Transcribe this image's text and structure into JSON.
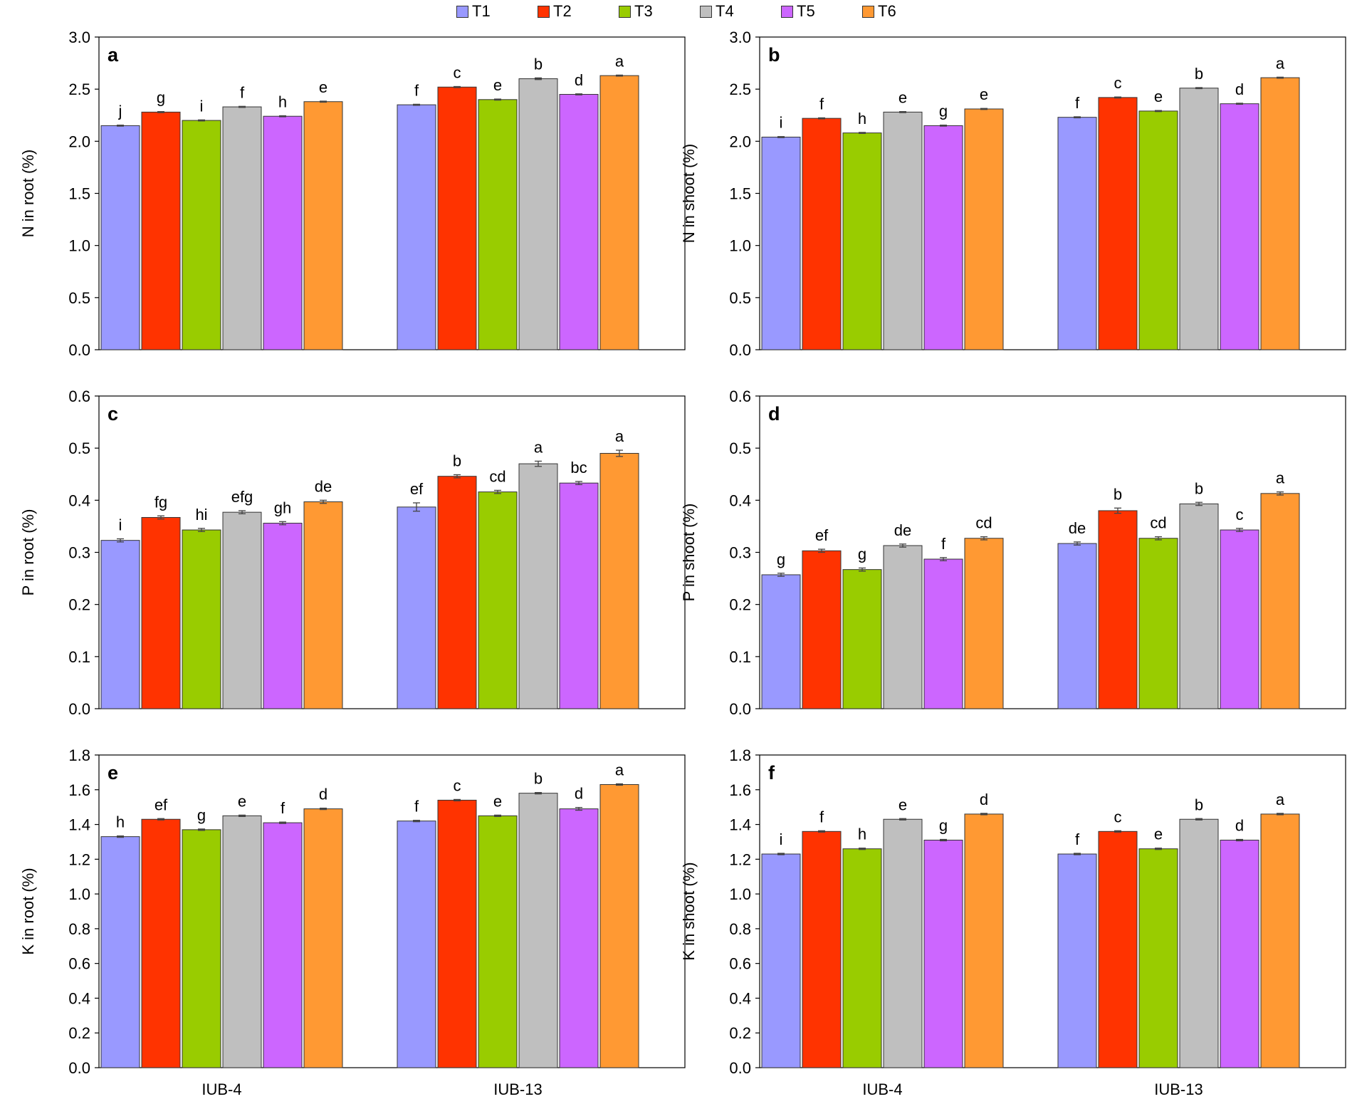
{
  "legend": [
    {
      "label": "T1",
      "color": "#9999ff"
    },
    {
      "label": "T2",
      "color": "#ff3300"
    },
    {
      "label": "T3",
      "color": "#99cc00"
    },
    {
      "label": "T4",
      "color": "#bfbfbf"
    },
    {
      "label": "T5",
      "color": "#cc66ff"
    },
    {
      "label": "T6",
      "color": "#ff9933"
    }
  ],
  "chart_data": [
    {
      "panel": "a",
      "type": "bar",
      "ylabel": "N in root (%)",
      "ylim": [
        0,
        3.0
      ],
      "yticks": [
        "0.0",
        "0.5",
        "1.0",
        "1.5",
        "2.0",
        "2.5",
        "3.0"
      ],
      "categories": [
        "IUB-4",
        "IUB-13"
      ],
      "show_xlabels": false,
      "series": [
        {
          "name": "T1",
          "values": [
            2.15,
            2.35
          ],
          "errors": [
            0.005,
            0.005
          ],
          "letters": [
            "j",
            "f"
          ]
        },
        {
          "name": "T2",
          "values": [
            2.28,
            2.52
          ],
          "errors": [
            0.005,
            0.005
          ],
          "letters": [
            "g",
            "c"
          ]
        },
        {
          "name": "T3",
          "values": [
            2.2,
            2.4
          ],
          "errors": [
            0.005,
            0.005
          ],
          "letters": [
            "i",
            "e"
          ]
        },
        {
          "name": "T4",
          "values": [
            2.33,
            2.6
          ],
          "errors": [
            0.005,
            0.008
          ],
          "letters": [
            "f",
            "b"
          ]
        },
        {
          "name": "T5",
          "values": [
            2.24,
            2.45
          ],
          "errors": [
            0.005,
            0.005
          ],
          "letters": [
            "h",
            "d"
          ]
        },
        {
          "name": "T6",
          "values": [
            2.38,
            2.63
          ],
          "errors": [
            0.005,
            0.005
          ],
          "letters": [
            "e",
            "a"
          ]
        }
      ]
    },
    {
      "panel": "b",
      "type": "bar",
      "ylabel": "N in shoot (%)",
      "ylim": [
        0,
        3.0
      ],
      "yticks": [
        "0.0",
        "0.5",
        "1.0",
        "1.5",
        "2.0",
        "2.5",
        "3.0"
      ],
      "categories": [
        "IUB-4",
        "IUB-13"
      ],
      "show_xlabels": false,
      "series": [
        {
          "name": "T1",
          "values": [
            2.04,
            2.23
          ],
          "errors": [
            0.005,
            0.005
          ],
          "letters": [
            "i",
            "f"
          ]
        },
        {
          "name": "T2",
          "values": [
            2.22,
            2.42
          ],
          "errors": [
            0.005,
            0.005
          ],
          "letters": [
            "f",
            "c"
          ]
        },
        {
          "name": "T3",
          "values": [
            2.08,
            2.29
          ],
          "errors": [
            0.005,
            0.005
          ],
          "letters": [
            "h",
            "e"
          ]
        },
        {
          "name": "T4",
          "values": [
            2.28,
            2.51
          ],
          "errors": [
            0.005,
            0.005
          ],
          "letters": [
            "e",
            "b"
          ]
        },
        {
          "name": "T5",
          "values": [
            2.15,
            2.36
          ],
          "errors": [
            0.005,
            0.005
          ],
          "letters": [
            "g",
            "d"
          ]
        },
        {
          "name": "T6",
          "values": [
            2.31,
            2.61
          ],
          "errors": [
            0.005,
            0.005
          ],
          "letters": [
            "e",
            "a"
          ]
        }
      ]
    },
    {
      "panel": "c",
      "type": "bar",
      "ylabel": "P in root (%)",
      "ylim": [
        0,
        0.6
      ],
      "yticks": [
        "0.0",
        "0.1",
        "0.2",
        "0.3",
        "0.4",
        "0.5",
        "0.6"
      ],
      "categories": [
        "IUB-4",
        "IUB-13"
      ],
      "show_xlabels": false,
      "series": [
        {
          "name": "T1",
          "values": [
            0.323,
            0.387
          ],
          "errors": [
            0.003,
            0.008
          ],
          "letters": [
            "i",
            "ef"
          ]
        },
        {
          "name": "T2",
          "values": [
            0.367,
            0.446
          ],
          "errors": [
            0.003,
            0.003
          ],
          "letters": [
            "fg",
            "b"
          ]
        },
        {
          "name": "T3",
          "values": [
            0.343,
            0.416
          ],
          "errors": [
            0.003,
            0.003
          ],
          "letters": [
            "hi",
            "cd"
          ]
        },
        {
          "name": "T4",
          "values": [
            0.377,
            0.47
          ],
          "errors": [
            0.003,
            0.005
          ],
          "letters": [
            "efg",
            "a"
          ]
        },
        {
          "name": "T5",
          "values": [
            0.356,
            0.433
          ],
          "errors": [
            0.003,
            0.003
          ],
          "letters": [
            "gh",
            "bc"
          ]
        },
        {
          "name": "T6",
          "values": [
            0.397,
            0.49
          ],
          "errors": [
            0.003,
            0.006
          ],
          "letters": [
            "de",
            "a"
          ]
        }
      ]
    },
    {
      "panel": "d",
      "type": "bar",
      "ylabel": "P in shoot (%)",
      "ylim": [
        0,
        0.6
      ],
      "yticks": [
        "0.0",
        "0.1",
        "0.2",
        "0.3",
        "0.4",
        "0.5",
        "0.6"
      ],
      "categories": [
        "IUB-4",
        "IUB-13"
      ],
      "show_xlabels": false,
      "series": [
        {
          "name": "T1",
          "values": [
            0.257,
            0.317
          ],
          "errors": [
            0.003,
            0.003
          ],
          "letters": [
            "g",
            "de"
          ]
        },
        {
          "name": "T2",
          "values": [
            0.303,
            0.38
          ],
          "errors": [
            0.003,
            0.005
          ],
          "letters": [
            "ef",
            "b"
          ]
        },
        {
          "name": "T3",
          "values": [
            0.267,
            0.327
          ],
          "errors": [
            0.003,
            0.003
          ],
          "letters": [
            "g",
            "cd"
          ]
        },
        {
          "name": "T4",
          "values": [
            0.313,
            0.393
          ],
          "errors": [
            0.003,
            0.003
          ],
          "letters": [
            "de",
            "b"
          ]
        },
        {
          "name": "T5",
          "values": [
            0.287,
            0.343
          ],
          "errors": [
            0.003,
            0.003
          ],
          "letters": [
            "f",
            "c"
          ]
        },
        {
          "name": "T6",
          "values": [
            0.327,
            0.413
          ],
          "errors": [
            0.003,
            0.003
          ],
          "letters": [
            "cd",
            "a"
          ]
        }
      ]
    },
    {
      "panel": "e",
      "type": "bar",
      "ylabel": "K in root (%)",
      "ylim": [
        0,
        1.8
      ],
      "yticks": [
        "0.0",
        "0.2",
        "0.4",
        "0.6",
        "0.8",
        "1.0",
        "1.2",
        "1.4",
        "1.6",
        "1.8"
      ],
      "categories": [
        "IUB-4",
        "IUB-13"
      ],
      "show_xlabels": true,
      "series": [
        {
          "name": "T1",
          "values": [
            1.33,
            1.42
          ],
          "errors": [
            0.004,
            0.004
          ],
          "letters": [
            "h",
            "f"
          ]
        },
        {
          "name": "T2",
          "values": [
            1.43,
            1.54
          ],
          "errors": [
            0.004,
            0.004
          ],
          "letters": [
            "ef",
            "c"
          ]
        },
        {
          "name": "T3",
          "values": [
            1.37,
            1.45
          ],
          "errors": [
            0.004,
            0.004
          ],
          "letters": [
            "g",
            "e"
          ]
        },
        {
          "name": "T4",
          "values": [
            1.45,
            1.58
          ],
          "errors": [
            0.004,
            0.004
          ],
          "letters": [
            "e",
            "b"
          ]
        },
        {
          "name": "T5",
          "values": [
            1.41,
            1.49
          ],
          "errors": [
            0.004,
            0.008
          ],
          "letters": [
            "f",
            "d"
          ]
        },
        {
          "name": "T6",
          "values": [
            1.49,
            1.63
          ],
          "errors": [
            0.004,
            0.004
          ],
          "letters": [
            "d",
            "a"
          ]
        }
      ]
    },
    {
      "panel": "f",
      "type": "bar",
      "ylabel": "K in shoot (%)",
      "ylim": [
        0,
        1.8
      ],
      "yticks": [
        "0.0",
        "0.2",
        "0.4",
        "0.6",
        "0.8",
        "1.0",
        "1.2",
        "1.4",
        "1.6",
        "1.8"
      ],
      "categories": [
        "IUB-4",
        "IUB-13"
      ],
      "show_xlabels": true,
      "series": [
        {
          "name": "T1",
          "values": [
            1.23,
            1.23
          ],
          "errors": [
            0.004,
            0.004
          ],
          "letters": [
            "i",
            "f"
          ]
        },
        {
          "name": "T2",
          "values": [
            1.36,
            1.36
          ],
          "errors": [
            0.004,
            0.004
          ],
          "letters": [
            "f",
            "c"
          ]
        },
        {
          "name": "T3",
          "values": [
            1.26,
            1.26
          ],
          "errors": [
            0.004,
            0.004
          ],
          "letters": [
            "h",
            "e"
          ]
        },
        {
          "name": "T4",
          "values": [
            1.43,
            1.43
          ],
          "errors": [
            0.004,
            0.004
          ],
          "letters": [
            "e",
            "b"
          ]
        },
        {
          "name": "T5",
          "values": [
            1.31,
            1.31
          ],
          "errors": [
            0.004,
            0.004
          ],
          "letters": [
            "g",
            "d"
          ]
        },
        {
          "name": "T6",
          "values": [
            1.46,
            1.46
          ],
          "errors": [
            0.004,
            0.004
          ],
          "letters": [
            "d",
            "a"
          ]
        }
      ]
    }
  ]
}
